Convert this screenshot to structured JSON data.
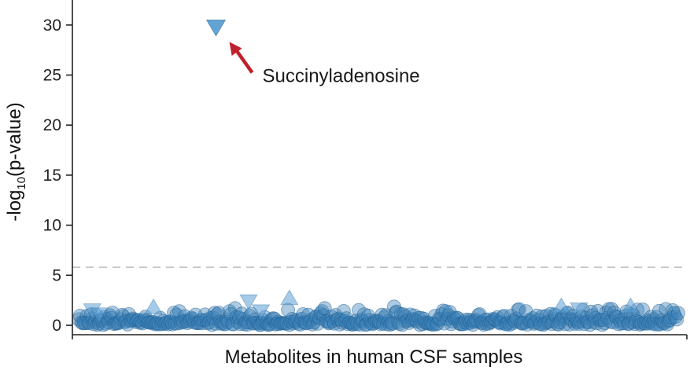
{
  "chart_data": {
    "type": "scatter",
    "title": "",
    "xlabel": "Metabolites in human CSF samples",
    "ylabel_prefix": "-log",
    "ylabel_subscript": "10",
    "ylabel_suffix": "(p-value)",
    "ylim": [
      0,
      32.5
    ],
    "yticks": [
      0,
      5,
      10,
      15,
      20,
      25,
      30
    ],
    "threshold": 5.8,
    "grid": false,
    "colors": {
      "point": "#3b80b8",
      "point_edge": "#1f5e91",
      "highlight": "#5b9fd3",
      "arrow": "#c0202c",
      "threshold": "#bdbdbd",
      "axis": "#222222"
    },
    "highlight_points": [
      {
        "x": 10,
        "y": 1.5,
        "marker": "triangle-down"
      },
      {
        "x": 15,
        "y": 1.1,
        "marker": "triangle-down"
      },
      {
        "x": 55,
        "y": 1.8,
        "marker": "triangle-up"
      },
      {
        "x": 125,
        "y": 2.4,
        "marker": "triangle-down"
      },
      {
        "x": 134,
        "y": 1.4,
        "marker": "triangle-down"
      },
      {
        "x": 155,
        "y": 2.7,
        "marker": "triangle-up"
      },
      {
        "x": 355,
        "y": 1.9,
        "marker": "triangle-up"
      },
      {
        "x": 368,
        "y": 1.6,
        "marker": "triangle-down"
      },
      {
        "x": 406,
        "y": 1.9,
        "marker": "triangle-up"
      },
      {
        "x": 101,
        "y": 29.8,
        "marker": "triangle-down",
        "label": "Succinyladenosine"
      }
    ]
  }
}
